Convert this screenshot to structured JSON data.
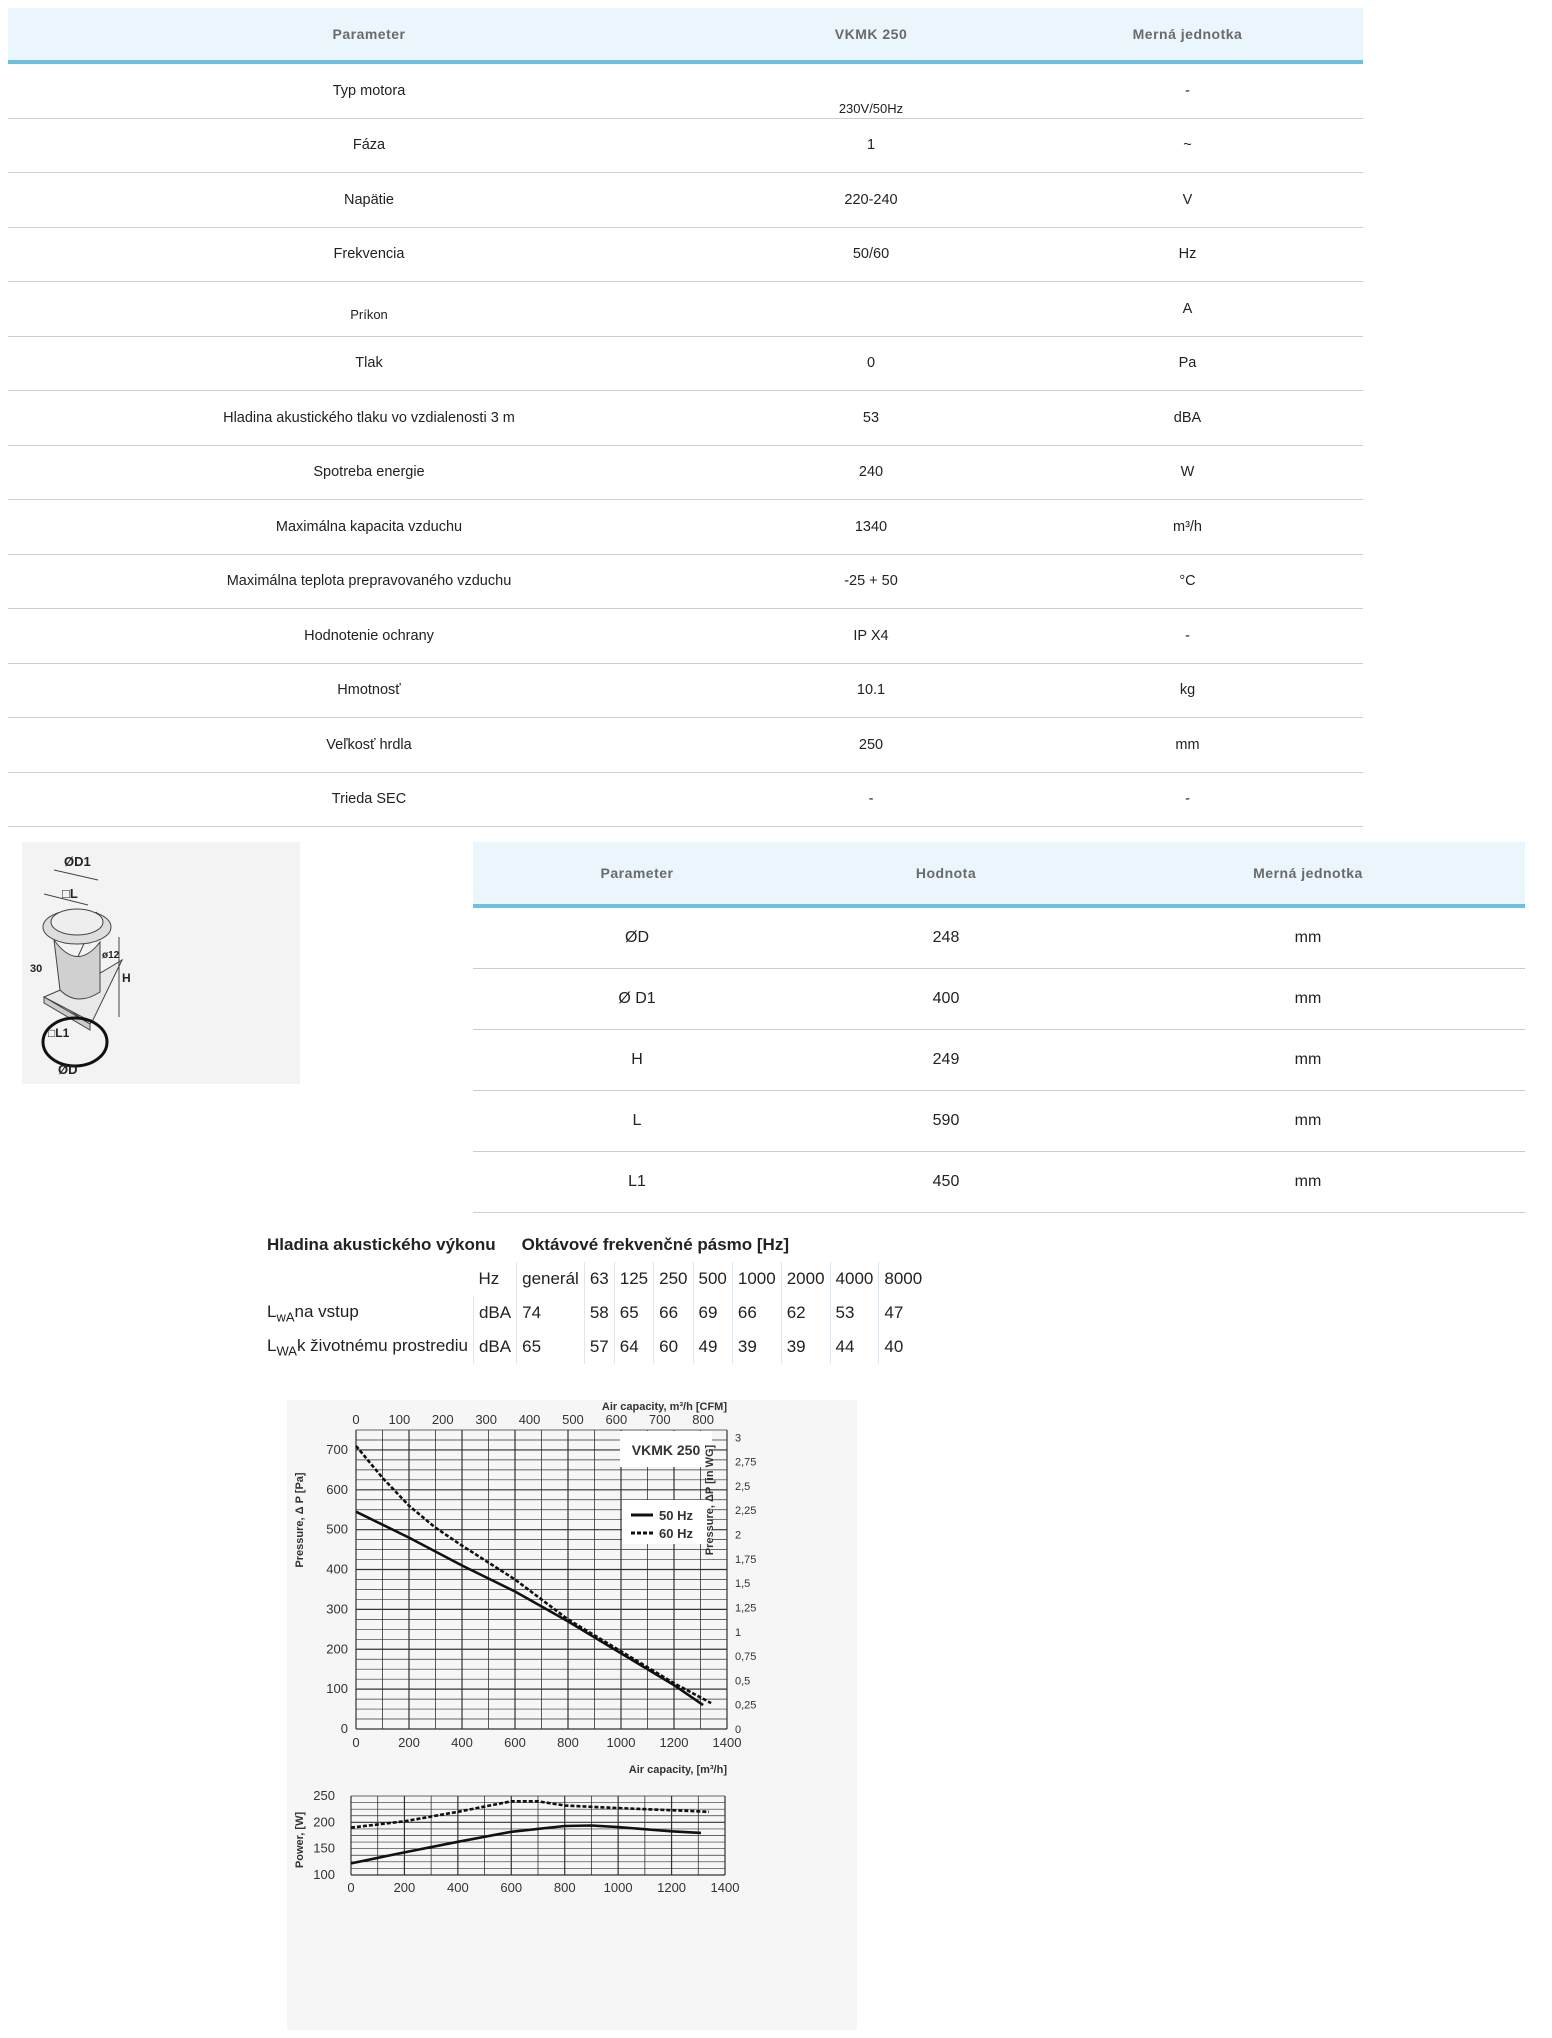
{
  "spec_table": {
    "headers": [
      "Parameter",
      "VKMK 250",
      "Merná jednotka"
    ],
    "rows": [
      [
        "Typ motora",
        "230V/50Hz",
        "-"
      ],
      [
        "Fáza",
        "1",
        "~"
      ],
      [
        "Napätie",
        "220-240",
        "V"
      ],
      [
        "Frekvencia",
        "50/60",
        "Hz"
      ],
      [
        "Príkon",
        "",
        "A"
      ],
      [
        "Tlak",
        "0",
        "Pa"
      ],
      [
        "Hladina akustického tlaku vo vzdialenosti 3 m",
        "53",
        "dBA"
      ],
      [
        "Spotreba energie",
        "240",
        "W"
      ],
      [
        "Maximálna kapacita vzduchu",
        "1340",
        "m³/h"
      ],
      [
        "Maximálna teplota prepravovaného vzduchu",
        "-25 + 50",
        "°C"
      ],
      [
        "Hodnotenie ochrany",
        "IP X4",
        "-"
      ],
      [
        "Hmotnosť",
        "10.1",
        "kg"
      ],
      [
        "Veľkosť hrdla",
        "250",
        "mm"
      ],
      [
        "Trieda SEC",
        "-",
        "-"
      ]
    ]
  },
  "drawing": {
    "labels": [
      "ØD1",
      "□L",
      "ø12",
      "H",
      "30",
      "□L1",
      "ØD"
    ]
  },
  "dim_table": {
    "headers": [
      "Parameter",
      "Hodnota",
      "Merná jednotka"
    ],
    "rows": [
      [
        "ØD",
        "248",
        "mm"
      ],
      [
        "Ø D1",
        "400",
        "mm"
      ],
      [
        "H",
        "249",
        "mm"
      ],
      [
        "L",
        "590",
        "mm"
      ],
      [
        "L1",
        "450",
        "mm"
      ]
    ]
  },
  "acoustic": {
    "title": "Hladina akustického výkonu",
    "band_title": "Oktávové frekvenčné pásmo [Hz]",
    "hz_label": "Hz",
    "bands": [
      "generál",
      "63",
      "125",
      "250",
      "500",
      "1000",
      "2000",
      "4000",
      "8000"
    ],
    "rows": [
      {
        "L": "L",
        "sub": "wA",
        "label": "na vstup",
        "unit": "dBA",
        "values": [
          "74",
          "58",
          "65",
          "66",
          "69",
          "66",
          "62",
          "53",
          "47"
        ]
      },
      {
        "L": "L",
        "sub": "WA",
        "label": "k životnému prostrediu",
        "unit": "dBA",
        "values": [
          "65",
          "57",
          "64",
          "60",
          "49",
          "39",
          "39",
          "44",
          "40"
        ]
      }
    ]
  },
  "chart_data": [
    {
      "type": "line",
      "title": "VKMK 250",
      "xlabel": "Air capacity, [m³/h]",
      "x2label": "Air capacity, m³/h [CFM]",
      "ylabel": "Pressure, Δ P [Pa]",
      "y2label": "Pressure, ΔP [in WG]",
      "xlim": [
        0,
        1400
      ],
      "ylim": [
        0,
        750
      ],
      "xticks": [
        0,
        200,
        400,
        600,
        800,
        1000,
        1200,
        1400
      ],
      "yticks": [
        0,
        100,
        200,
        300,
        400,
        500,
        600,
        700
      ],
      "x2ticks": [
        "0",
        "100",
        "200",
        "300",
        "400",
        "500",
        "600",
        "700",
        "800"
      ],
      "y2ticks": [
        "0",
        "0,25",
        "0,5",
        "0,75",
        "1",
        "1,25",
        "1,5",
        "1,75",
        "2",
        "2,25",
        "2,5",
        "2,75",
        "3"
      ],
      "grid": true,
      "legend": "top-right",
      "series": [
        {
          "name": "50 Hz",
          "style": "solid",
          "x": [
            0,
            200,
            400,
            600,
            800,
            1000,
            1200,
            1310
          ],
          "y": [
            545,
            480,
            410,
            345,
            270,
            190,
            110,
            60
          ]
        },
        {
          "name": "60 Hz",
          "style": "dashed",
          "x": [
            0,
            100,
            200,
            300,
            400,
            600,
            800,
            1000,
            1200,
            1340
          ],
          "y": [
            710,
            630,
            560,
            505,
            460,
            375,
            275,
            195,
            115,
            65
          ]
        }
      ]
    },
    {
      "type": "line",
      "xlabel": "",
      "ylabel": "Power, [W]",
      "xlim": [
        0,
        1400
      ],
      "ylim": [
        100,
        250
      ],
      "xticks": [
        0,
        200,
        400,
        600,
        800,
        1000,
        1200,
        1400
      ],
      "yticks": [
        100,
        150,
        200,
        250
      ],
      "grid": true,
      "series": [
        {
          "style": "solid",
          "x": [
            0,
            200,
            400,
            600,
            800,
            900,
            1000,
            1200,
            1310
          ],
          "y": [
            122,
            143,
            163,
            182,
            193,
            194,
            191,
            183,
            180
          ]
        },
        {
          "style": "dashed",
          "x": [
            0,
            200,
            400,
            600,
            700,
            800,
            1000,
            1200,
            1340
          ],
          "y": [
            190,
            202,
            220,
            240,
            240,
            232,
            227,
            223,
            220
          ]
        }
      ]
    }
  ]
}
